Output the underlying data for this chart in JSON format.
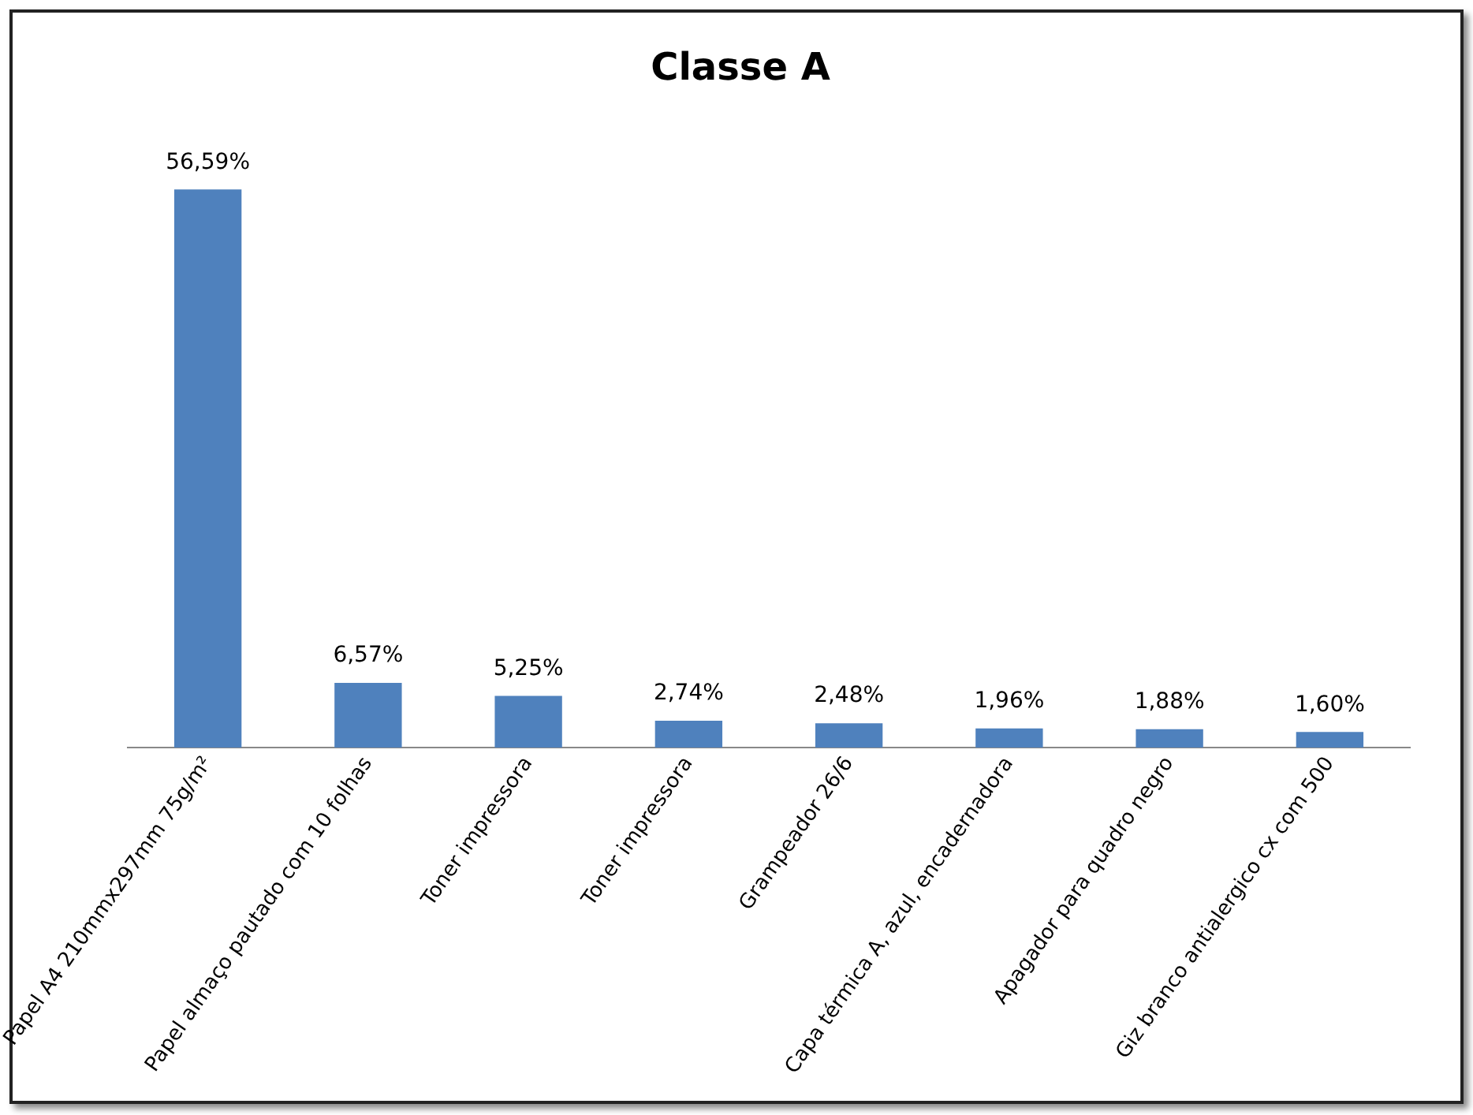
{
  "chart_data": {
    "type": "bar",
    "title": "Classe A",
    "categories": [
      "Papel A4 210mmx297mm 75g/m²",
      "Papel almaço pautado com 10 folhas",
      "Toner impressora",
      "Toner impressora",
      "Grampeador 26/6",
      "Capa térmica A, azul, encadernadora",
      "Apagador para quadro negro",
      "Giz branco antialergico cx com 500"
    ],
    "values": [
      56.59,
      6.57,
      5.25,
      2.74,
      2.48,
      1.96,
      1.88,
      1.6
    ],
    "value_labels": [
      "56,59%",
      "6,57%",
      "5,25%",
      "2,74%",
      "2,48%",
      "1,96%",
      "1,88%",
      "1,60%"
    ],
    "color": "#4f81bd",
    "tick_labels": "x",
    "grid": false,
    "legend": false
  }
}
